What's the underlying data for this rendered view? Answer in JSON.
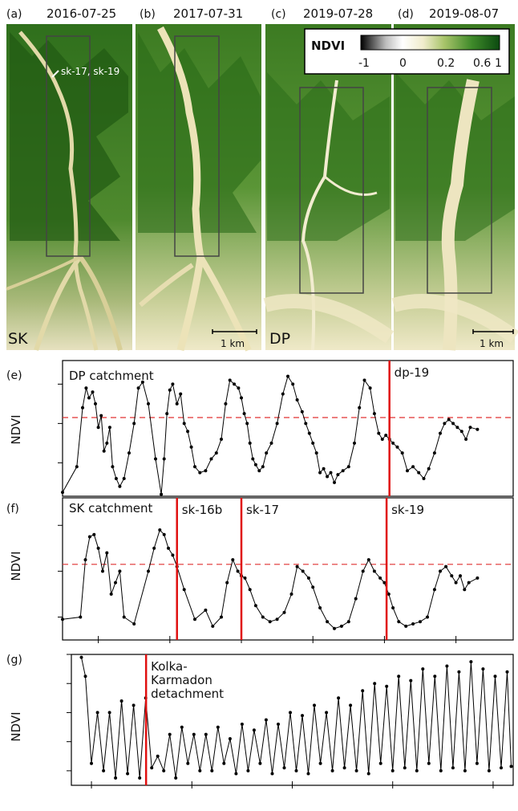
{
  "top_panels": {
    "legend": {
      "title": "NDVI",
      "ticks": [
        "-1",
        "0",
        "0.2",
        "0.6",
        "1"
      ]
    },
    "panels": [
      {
        "tag": "(a)",
        "date": "2016-07-25",
        "site": "SK",
        "note": "sk-17, sk-19",
        "scale": ""
      },
      {
        "tag": "(b)",
        "date": "2017-07-31",
        "site": "",
        "note": "",
        "scale": "1 km"
      },
      {
        "tag": "(c)",
        "date": "2019-07-28",
        "site": "DP",
        "note": "",
        "scale": ""
      },
      {
        "tag": "(d)",
        "date": "2019-08-07",
        "site": "",
        "note": "",
        "scale": "1 km"
      }
    ]
  },
  "chart_data": [
    {
      "panel": "(e)",
      "type": "line",
      "title": "DP catchment",
      "ylabel": "NDVI",
      "xlim": [
        2014.5,
        2020.8
      ],
      "ylim": [
        -0.17,
        0.52
      ],
      "yticks": [
        "0.0",
        "0.2",
        "0.4"
      ],
      "threshold": 0.23,
      "events": [
        {
          "x": 2019.07,
          "label": "dp-19"
        }
      ],
      "x": [
        2014.5,
        2014.7,
        2014.78,
        2014.83,
        2014.87,
        2014.92,
        2014.96,
        2015.0,
        2015.04,
        2015.08,
        2015.12,
        2015.16,
        2015.2,
        2015.25,
        2015.3,
        2015.36,
        2015.43,
        2015.5,
        2015.56,
        2015.62,
        2015.7,
        2015.8,
        2015.88,
        2015.92,
        2015.96,
        2016.0,
        2016.04,
        2016.1,
        2016.15,
        2016.2,
        2016.25,
        2016.3,
        2016.35,
        2016.42,
        2016.5,
        2016.58,
        2016.65,
        2016.72,
        2016.78,
        2016.84,
        2016.9,
        2016.96,
        2017.0,
        2017.04,
        2017.08,
        2017.12,
        2017.16,
        2017.2,
        2017.25,
        2017.3,
        2017.35,
        2017.42,
        2017.5,
        2017.58,
        2017.65,
        2017.72,
        2017.78,
        2017.85,
        2017.9,
        2017.95,
        2018.0,
        2018.05,
        2018.1,
        2018.15,
        2018.2,
        2018.25,
        2018.3,
        2018.35,
        2018.42,
        2018.5,
        2018.58,
        2018.65,
        2018.72,
        2018.8,
        2018.86,
        2018.92,
        2018.97,
        2019.02,
        2019.07,
        2019.12,
        2019.18,
        2019.25,
        2019.32,
        2019.4,
        2019.48,
        2019.55,
        2019.62,
        2019.7,
        2019.78,
        2019.84,
        2019.9,
        2019.96,
        2020.02,
        2020.08,
        2020.14,
        2020.2,
        2020.3
      ],
      "y": [
        -0.15,
        -0.02,
        0.28,
        0.38,
        0.33,
        0.36,
        0.3,
        0.18,
        0.24,
        0.06,
        0.1,
        0.18,
        -0.02,
        -0.08,
        -0.12,
        -0.08,
        0.05,
        0.2,
        0.38,
        0.41,
        0.3,
        0.02,
        -0.16,
        0.02,
        0.25,
        0.37,
        0.4,
        0.3,
        0.35,
        0.2,
        0.16,
        0.08,
        -0.02,
        -0.05,
        -0.04,
        0.02,
        0.05,
        0.12,
        0.3,
        0.42,
        0.4,
        0.38,
        0.33,
        0.25,
        0.2,
        0.1,
        0.02,
        -0.01,
        -0.04,
        -0.02,
        0.05,
        0.1,
        0.2,
        0.35,
        0.44,
        0.4,
        0.32,
        0.26,
        0.2,
        0.15,
        0.1,
        0.05,
        -0.05,
        -0.03,
        -0.07,
        -0.05,
        -0.1,
        -0.06,
        -0.04,
        -0.02,
        0.1,
        0.28,
        0.42,
        0.38,
        0.25,
        0.15,
        0.12,
        0.14,
        0.12,
        0.1,
        0.08,
        0.05,
        -0.04,
        -0.02,
        -0.05,
        -0.08,
        -0.03,
        0.05,
        0.15,
        0.2,
        0.22,
        0.2,
        0.18,
        0.16,
        0.12,
        0.18,
        0.17
      ]
    },
    {
      "panel": "(f)",
      "type": "line",
      "title": "SK catchment",
      "ylabel": "NDVI",
      "xlim": [
        2014.5,
        2020.8
      ],
      "ylim": [
        -0.1,
        0.52
      ],
      "yticks": [
        "0.0",
        "0.2",
        "0.4"
      ],
      "threshold": 0.23,
      "xticks": [
        "2015",
        "2016",
        "2017",
        "2018",
        "2019",
        "2020"
      ],
      "events": [
        {
          "x": 2016.1,
          "label": "sk-16b"
        },
        {
          "x": 2017.0,
          "label": "sk-17"
        },
        {
          "x": 2019.03,
          "label": "sk-19"
        }
      ],
      "x": [
        2014.5,
        2014.75,
        2014.82,
        2014.88,
        2014.94,
        2015.0,
        2015.06,
        2015.12,
        2015.18,
        2015.24,
        2015.3,
        2015.36,
        2015.5,
        2015.7,
        2015.78,
        2015.86,
        2015.92,
        2015.98,
        2016.04,
        2016.1,
        2016.2,
        2016.35,
        2016.5,
        2016.6,
        2016.72,
        2016.8,
        2016.88,
        2016.95,
        2017.0,
        2017.05,
        2017.12,
        2017.2,
        2017.3,
        2017.4,
        2017.5,
        2017.6,
        2017.7,
        2017.78,
        2017.86,
        2017.94,
        2018.0,
        2018.1,
        2018.2,
        2018.3,
        2018.4,
        2018.5,
        2018.6,
        2018.7,
        2018.78,
        2018.86,
        2018.94,
        2019.0,
        2019.06,
        2019.12,
        2019.2,
        2019.3,
        2019.4,
        2019.5,
        2019.6,
        2019.7,
        2019.78,
        2019.86,
        2019.94,
        2020.0,
        2020.06,
        2020.12,
        2020.18,
        2020.3
      ],
      "y": [
        -0.01,
        0.0,
        0.25,
        0.35,
        0.36,
        0.3,
        0.2,
        0.28,
        0.1,
        0.15,
        0.2,
        0.0,
        -0.03,
        0.2,
        0.3,
        0.38,
        0.36,
        0.3,
        0.27,
        0.22,
        0.12,
        -0.01,
        0.03,
        -0.04,
        0.0,
        0.15,
        0.25,
        0.2,
        0.18,
        0.17,
        0.12,
        0.05,
        0.0,
        -0.02,
        -0.01,
        0.02,
        0.1,
        0.22,
        0.2,
        0.17,
        0.13,
        0.04,
        -0.02,
        -0.05,
        -0.04,
        -0.02,
        0.08,
        0.2,
        0.25,
        0.2,
        0.17,
        0.15,
        0.1,
        0.04,
        -0.02,
        -0.04,
        -0.03,
        -0.02,
        0.0,
        0.12,
        0.2,
        0.22,
        0.18,
        0.15,
        0.18,
        0.12,
        0.15,
        0.17
      ]
    },
    {
      "panel": "(g)",
      "type": "line",
      "title": "",
      "ylabel": "NDVI",
      "xlim": [
        1999.0,
        2021.0
      ],
      "ylim": [
        -0.3,
        0.6
      ],
      "yticks": [
        "-0.2",
        "0.0",
        "0.2",
        "0.4",
        "0.6"
      ],
      "xticks": [
        "2000",
        "2005",
        "2010",
        "2015",
        "2020"
      ],
      "events": [
        {
          "x": 2002.72,
          "label": "Kolka-\nKarmadon\ndetachment"
        }
      ],
      "x": [
        1999.5,
        1999.7,
        2000.0,
        2000.3,
        2000.6,
        2000.9,
        2001.2,
        2001.5,
        2001.8,
        2002.1,
        2002.4,
        2002.7,
        2003.0,
        2003.3,
        2003.6,
        2003.9,
        2004.2,
        2004.5,
        2004.8,
        2005.1,
        2005.4,
        2005.7,
        2006.0,
        2006.3,
        2006.6,
        2006.9,
        2007.2,
        2007.5,
        2007.8,
        2008.1,
        2008.4,
        2008.7,
        2009.0,
        2009.3,
        2009.6,
        2009.9,
        2010.2,
        2010.5,
        2010.8,
        2011.1,
        2011.4,
        2011.7,
        2012.0,
        2012.3,
        2012.6,
        2012.9,
        2013.2,
        2013.5,
        2013.8,
        2014.1,
        2014.4,
        2014.7,
        2015.0,
        2015.3,
        2015.6,
        2015.9,
        2016.2,
        2016.5,
        2016.8,
        2017.1,
        2017.4,
        2017.7,
        2018.0,
        2018.3,
        2018.6,
        2018.9,
        2019.2,
        2019.5,
        2019.8,
        2020.1,
        2020.4,
        2020.7,
        2020.9
      ],
      "y": [
        0.58,
        0.45,
        -0.15,
        0.2,
        -0.2,
        0.2,
        -0.25,
        0.28,
        -0.22,
        0.25,
        -0.25,
        0.3,
        -0.18,
        -0.1,
        -0.2,
        0.05,
        -0.25,
        0.1,
        -0.15,
        0.05,
        -0.2,
        0.05,
        -0.2,
        0.1,
        -0.15,
        0.02,
        -0.22,
        0.12,
        -0.2,
        0.08,
        -0.15,
        0.15,
        -0.22,
        0.12,
        -0.18,
        0.2,
        -0.2,
        0.18,
        -0.22,
        0.25,
        -0.15,
        0.2,
        -0.2,
        0.3,
        -0.18,
        0.25,
        -0.2,
        0.35,
        -0.22,
        0.4,
        -0.15,
        0.38,
        -0.2,
        0.45,
        -0.18,
        0.42,
        -0.2,
        0.5,
        -0.15,
        0.45,
        -0.2,
        0.52,
        -0.18,
        0.48,
        -0.2,
        0.55,
        -0.15,
        0.5,
        -0.2,
        0.45,
        -0.18,
        0.48,
        -0.17
      ]
    }
  ]
}
